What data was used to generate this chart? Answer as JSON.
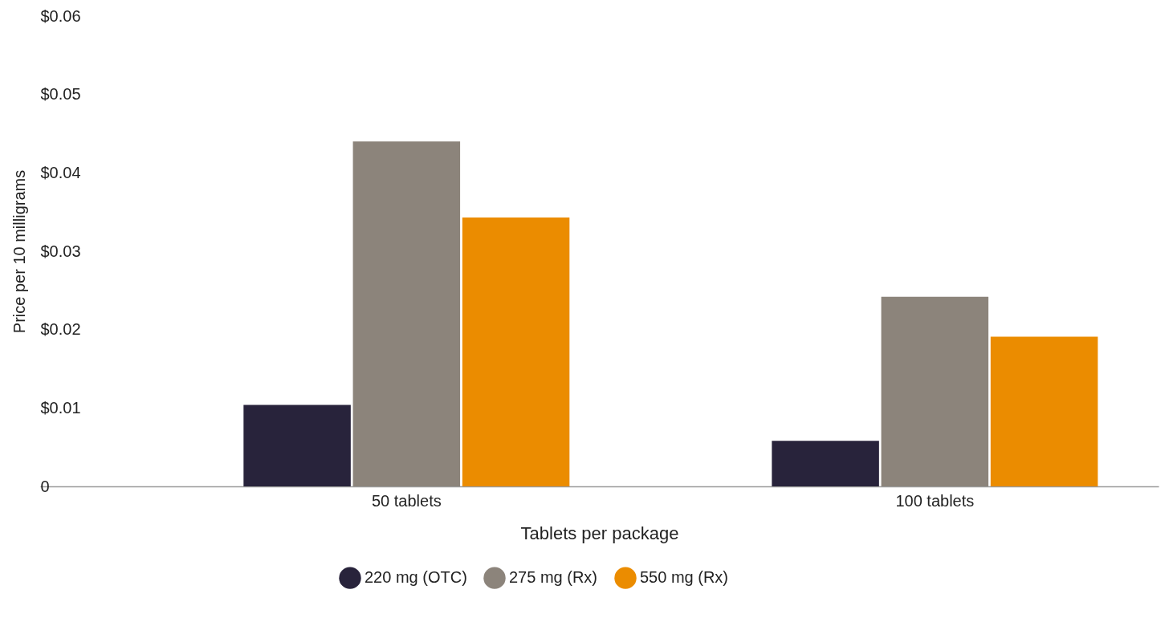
{
  "chart_data": {
    "type": "bar",
    "xlabel": "Tablets per package",
    "ylabel": "Price per 10 milligrams",
    "categories": [
      "50 tablets",
      "100 tablets"
    ],
    "series": [
      {
        "name": "220 mg (OTC)",
        "color": "#28233b",
        "values": [
          0.0104,
          0.0058
        ]
      },
      {
        "name": "275 mg (Rx)",
        "color": "#8c847b",
        "values": [
          0.044,
          0.0242
        ]
      },
      {
        "name": "550 mg (Rx)",
        "color": "#eb8c00",
        "values": [
          0.0343,
          0.0191
        ]
      }
    ],
    "ylim": [
      0,
      0.06
    ],
    "yticks": [
      0,
      {
        "value": 0.01,
        "label": "$0.01"
      },
      {
        "value": 0.02,
        "label": "$0.02"
      },
      {
        "value": 0.03,
        "label": "$0.03"
      },
      {
        "value": 0.04,
        "label": "$0.04"
      },
      {
        "value": 0.05,
        "label": "$0.05"
      },
      {
        "value": 0.06,
        "label": "$0.06"
      }
    ],
    "grid": false,
    "legend": "bottom"
  }
}
